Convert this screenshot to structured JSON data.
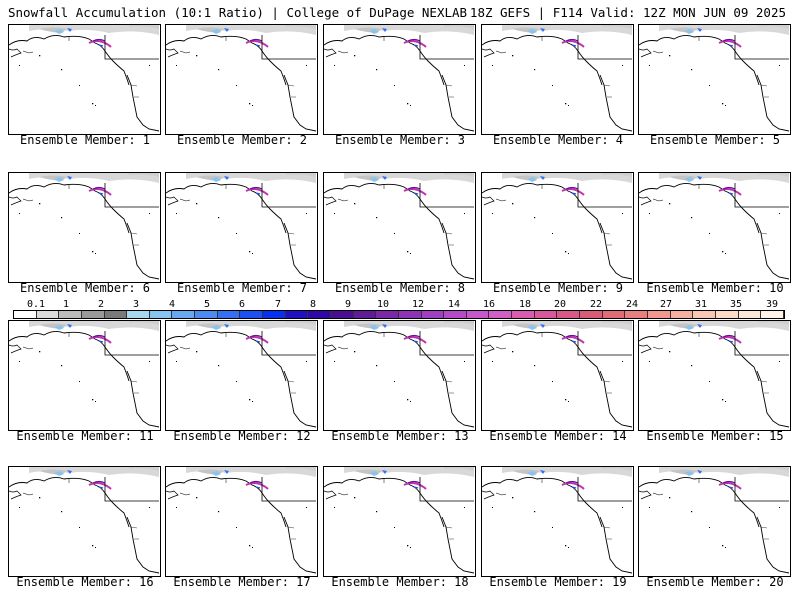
{
  "header": {
    "left": "Snowfall Accumulation (10:1 Ratio) | College of DuPage NEXLAB",
    "right": "18Z GEFS | F114 Valid: 12Z MON JUN 09 2025"
  },
  "members": [
    "Ensemble Member: 1",
    "Ensemble Member: 2",
    "Ensemble Member: 3",
    "Ensemble Member: 4",
    "Ensemble Member: 5",
    "Ensemble Member: 6",
    "Ensemble Member: 7",
    "Ensemble Member: 8",
    "Ensemble Member: 9",
    "Ensemble Member: 10",
    "Ensemble Member: 11",
    "Ensemble Member: 12",
    "Ensemble Member: 13",
    "Ensemble Member: 14",
    "Ensemble Member: 15",
    "Ensemble Member: 16",
    "Ensemble Member: 17",
    "Ensemble Member: 18",
    "Ensemble Member: 19",
    "Ensemble Member: 20"
  ],
  "legend": {
    "labels": [
      "0.1",
      "1",
      "2",
      "3",
      "4",
      "5",
      "6",
      "7",
      "8",
      "9",
      "10",
      "12",
      "14",
      "16",
      "18",
      "20",
      "22",
      "24",
      "27",
      "31",
      "35",
      "39"
    ],
    "colors": [
      "#ffffff",
      "#dcdcdc",
      "#bcbcbc",
      "#9a9a9a",
      "#7a7a7a",
      "#a8d8f0",
      "#88c4f0",
      "#68a8f0",
      "#4c8cf0",
      "#3470f0",
      "#1c50f0",
      "#0830f0",
      "#2010c0",
      "#3008a8",
      "#481090",
      "#601c98",
      "#7828a8",
      "#8c34b4",
      "#a040c0",
      "#b44cc8",
      "#c458cc",
      "#d060c4",
      "#d85cb0",
      "#d8589c",
      "#d85888",
      "#d85c78",
      "#e06c78",
      "#e88080",
      "#f09890",
      "#f4b0a0",
      "#f8c8b4",
      "#fadcc8",
      "#fce8d8",
      "#fef4ec"
    ]
  }
}
